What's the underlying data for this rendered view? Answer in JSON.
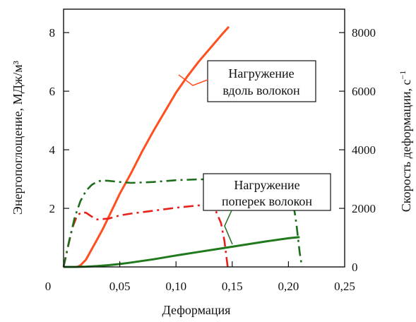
{
  "chart_data": {
    "type": "line",
    "title": "",
    "xlabel": "Деформация",
    "ylabel_left": "Энергопоглощение, МДж/м³",
    "ylabel_right": "Скорость деформации, с",
    "ylabel_right_exp": "−1",
    "xlim": [
      0,
      0.25
    ],
    "ylim_left": [
      0,
      8.8
    ],
    "ylim_right": [
      0,
      8800
    ],
    "x_ticks": [
      0,
      0.05,
      0.1,
      0.15,
      0.2,
      0.25
    ],
    "x_tick_labels": [
      "0",
      "0,05",
      "0,10",
      "0,15",
      "0,20",
      "0,25"
    ],
    "y_left_ticks": [
      2,
      4,
      6,
      8
    ],
    "y_left_tick_labels": [
      "2",
      "4",
      "6",
      "8"
    ],
    "y_right_ticks": [
      0,
      2000,
      4000,
      6000,
      8000
    ],
    "y_right_tick_labels": [
      "0",
      "2000",
      "4000",
      "6000",
      "8000"
    ],
    "grid": false,
    "series": [
      {
        "axis": "left",
        "style": "solid",
        "color": "#ff4f1f",
        "x": [
          0.012,
          0.015,
          0.02,
          0.025,
          0.03,
          0.035,
          0.04,
          0.05,
          0.06,
          0.07,
          0.08,
          0.09,
          0.1,
          0.11,
          0.12,
          0.13,
          0.14,
          0.147
        ],
        "y": [
          0,
          0.05,
          0.25,
          0.6,
          0.95,
          1.3,
          1.7,
          2.5,
          3.2,
          3.95,
          4.65,
          5.3,
          5.95,
          6.5,
          7.0,
          7.45,
          7.9,
          8.2
        ]
      },
      {
        "axis": "left",
        "style": "solid",
        "color": "#207a1c",
        "x": [
          0,
          0.01,
          0.02,
          0.03,
          0.04,
          0.05,
          0.06,
          0.08,
          0.1,
          0.12,
          0.14,
          0.16,
          0.18,
          0.2,
          0.21
        ],
        "y": [
          0,
          0,
          0.01,
          0.03,
          0.06,
          0.1,
          0.15,
          0.26,
          0.39,
          0.51,
          0.63,
          0.75,
          0.87,
          0.98,
          1.02
        ]
      },
      {
        "axis": "right",
        "style": "dashdot",
        "color": "#e8201a",
        "x": [
          0,
          0.004,
          0.008,
          0.012,
          0.016,
          0.02,
          0.025,
          0.03,
          0.04,
          0.05,
          0.06,
          0.08,
          0.1,
          0.12,
          0.13,
          0.135,
          0.14,
          0.143,
          0.145,
          0.146
        ],
        "y": [
          0,
          700,
          1350,
          1750,
          1870,
          1850,
          1720,
          1620,
          1650,
          1760,
          1820,
          1920,
          2020,
          2100,
          2080,
          1950,
          1500,
          900,
          300,
          0
        ]
      },
      {
        "axis": "right",
        "style": "dashdot",
        "color": "#1c6e1a",
        "x": [
          0,
          0.005,
          0.01,
          0.015,
          0.02,
          0.025,
          0.03,
          0.035,
          0.04,
          0.05,
          0.06,
          0.08,
          0.1,
          0.12,
          0.14,
          0.16,
          0.18,
          0.195,
          0.203,
          0.207,
          0.21,
          0.212
        ],
        "y": [
          0,
          900,
          1700,
          2250,
          2600,
          2800,
          2920,
          2950,
          2940,
          2900,
          2870,
          2900,
          2960,
          2990,
          2990,
          2980,
          2950,
          2900,
          2500,
          1500,
          500,
          0
        ]
      }
    ],
    "annotations": [
      {
        "lines": [
          "Нагружение",
          "вдоль волокон"
        ]
      },
      {
        "lines": [
          "Нагружение",
          "поперек волокон"
        ]
      }
    ]
  }
}
